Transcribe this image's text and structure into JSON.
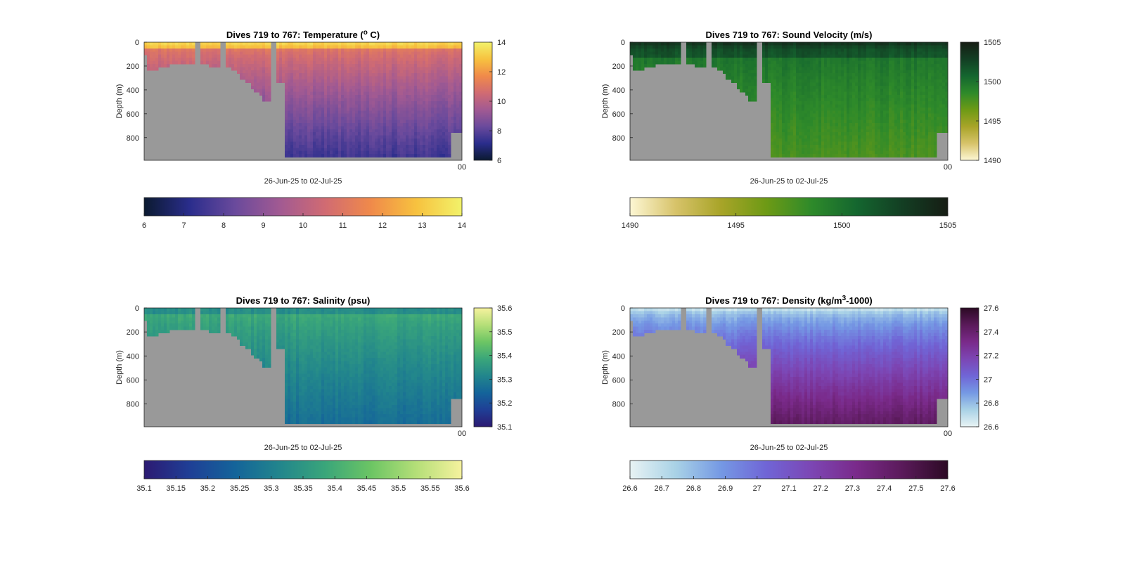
{
  "figure": {
    "background": "#ffffff",
    "mask_color": "#999999"
  },
  "chart_data": [
    {
      "type": "heatmap",
      "variable": "temperature",
      "title_parts": [
        "Dives 719 to 767: Temperature (",
        "o",
        " C)"
      ],
      "xlabel": "26-Jun-25 to 02-Jul-25",
      "ylabel": "Depth (m)",
      "y_ticks": [
        "0",
        "200",
        "400",
        "600",
        "800"
      ],
      "ylim": [
        0,
        990
      ],
      "y_reversed": true,
      "x_corner_tick": "00",
      "clim": [
        6,
        14
      ],
      "colormap": [
        "#0b1a30",
        "#2a2d8c",
        "#6a4a9c",
        "#a25a92",
        "#d16b72",
        "#f08a4a",
        "#f7c23f",
        "#f2f26a"
      ],
      "colorbar_ticks": [
        "14",
        "12",
        "10",
        "8",
        "6"
      ],
      "h_colorbar_ticks": [
        "6",
        "7",
        "8",
        "9",
        "10",
        "11",
        "12",
        "13",
        "14"
      ],
      "surface_value": 13.2,
      "deep_value": 7.4
    },
    {
      "type": "heatmap",
      "variable": "sound_velocity",
      "title_parts": [
        "Dives 719 to 767: Sound Velocity (m/s)"
      ],
      "xlabel": "26-Jun-25 to 02-Jul-25",
      "ylabel": "Depth (m)",
      "y_ticks": [
        "0",
        "200",
        "400",
        "600",
        "800"
      ],
      "ylim": [
        0,
        990
      ],
      "y_reversed": true,
      "x_corner_tick": "00",
      "clim": [
        1490,
        1505
      ],
      "colormap": [
        "#fdf7d4",
        "#d7c36a",
        "#a8a428",
        "#6d9a15",
        "#2e8a2a",
        "#14662f",
        "#133e23",
        "#161d14"
      ],
      "colorbar_ticks": [
        "1505",
        "1500",
        "1495",
        "1490"
      ],
      "h_colorbar_ticks": [
        "1490",
        "1495",
        "1500",
        "1505"
      ],
      "surface_value": 1502.5,
      "deep_value": 1498.0
    },
    {
      "type": "heatmap",
      "variable": "salinity",
      "title_parts": [
        "Dives 719 to 767: Salinity (psu)"
      ],
      "xlabel": "26-Jun-25 to 02-Jul-25",
      "ylabel": "Depth (m)",
      "y_ticks": [
        "0",
        "200",
        "400",
        "600",
        "800"
      ],
      "ylim": [
        0,
        990
      ],
      "y_reversed": true,
      "x_corner_tick": "00",
      "clim": [
        35.1,
        35.6
      ],
      "colormap": [
        "#2c1a72",
        "#1f3f96",
        "#14649a",
        "#22868c",
        "#3aa67a",
        "#6cc564",
        "#b5df78",
        "#f6f29e"
      ],
      "colorbar_ticks": [
        "35.6",
        "35.5",
        "35.4",
        "35.3",
        "35.2",
        "35.1"
      ],
      "h_colorbar_ticks": [
        "35.1",
        "35.15",
        "35.2",
        "35.25",
        "35.3",
        "35.35",
        "35.4",
        "35.45",
        "35.5",
        "35.55",
        "35.6"
      ],
      "surface_value": 35.39,
      "deep_value": 35.26
    },
    {
      "type": "heatmap",
      "variable": "density",
      "title_parts": [
        "Dives 719 to 767: Density (kg/m",
        "3",
        "-1000)"
      ],
      "xlabel": "26-Jun-25 to 02-Jul-25",
      "ylabel": "Depth (m)",
      "y_ticks": [
        "0",
        "200",
        "400",
        "600",
        "800"
      ],
      "ylim": [
        0,
        990
      ],
      "y_reversed": true,
      "x_corner_tick": "00",
      "clim": [
        26.6,
        27.6
      ],
      "colormap": [
        "#e8f3f4",
        "#a9d2e6",
        "#7599e4",
        "#7065d6",
        "#7c46b4",
        "#7a2a8a",
        "#5a1a5a",
        "#2c0a24"
      ],
      "colorbar_ticks": [
        "27.6",
        "27.4",
        "27.2",
        "27",
        "26.8",
        "26.6"
      ],
      "h_colorbar_ticks": [
        "26.6",
        "26.7",
        "26.8",
        "26.9",
        "27",
        "27.1",
        "27.2",
        "27.3",
        "27.4",
        "27.5",
        "27.6"
      ],
      "surface_value": 26.8,
      "deep_value": 27.45
    }
  ]
}
